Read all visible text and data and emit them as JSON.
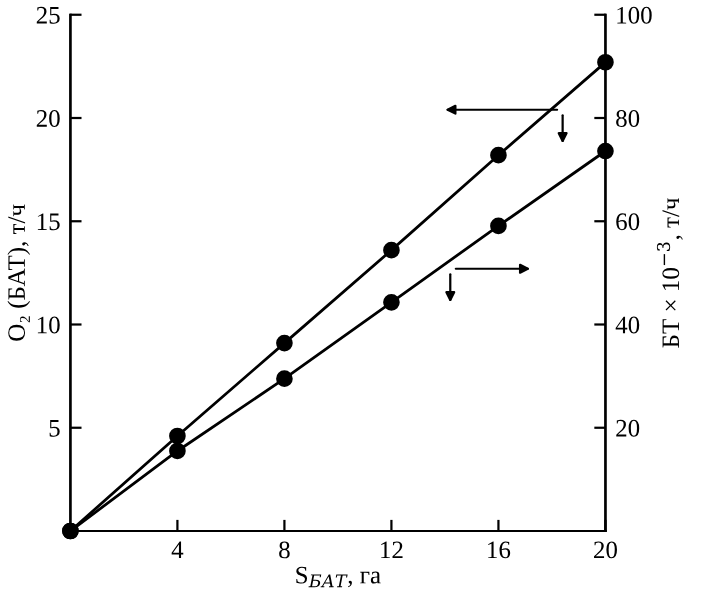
{
  "chart_data": {
    "type": "line",
    "xlabel": "S$_{БАТ}$, га",
    "ylabel": "O₂ (БАТ), т/ч",
    "y2label": "БТ × 10$^{−3}$, т/ч",
    "x": [
      0,
      4,
      8,
      12,
      16,
      20
    ],
    "series": [
      {
        "color": "#000000",
        "values": [
          0,
          4.6,
          9.1,
          13.6,
          18.2,
          22.7
        ]
      },
      {
        "color": "#000000",
        "axis": "y2",
        "values": [
          0,
          15.5,
          29.5,
          44.3,
          59.1,
          73.6
        ]
      }
    ],
    "xlim": [
      0,
      20
    ],
    "xticks": [
      4,
      8,
      12,
      16,
      20
    ],
    "ylim": [
      0,
      25
    ],
    "yticks": [
      5,
      10,
      15,
      20,
      25
    ],
    "y2lim": [
      0,
      100
    ],
    "y2ticks": [
      20,
      40,
      60,
      80,
      100
    ],
    "marker": "circle",
    "line_style": "solid",
    "grid": false
  }
}
